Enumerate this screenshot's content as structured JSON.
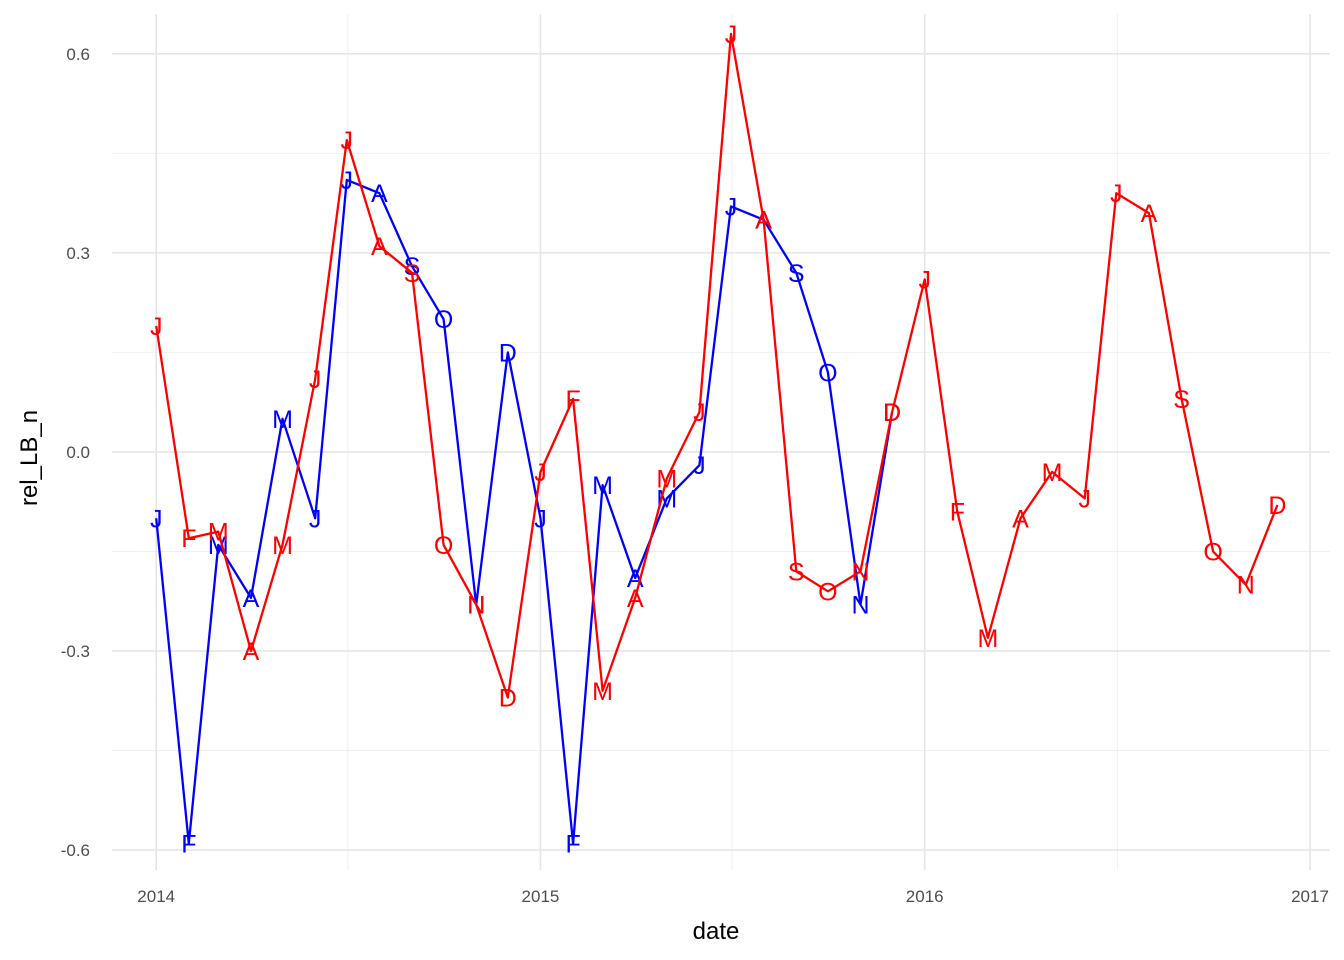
{
  "chart_data": {
    "type": "line",
    "xlabel": "date",
    "ylabel": "rel_LB_n",
    "x_ticks": [
      "2014",
      "2015",
      "2016",
      "2017"
    ],
    "y_ticks": [
      "-0.6",
      "-0.3",
      "0.0",
      "0.3",
      "0.6"
    ],
    "xlim": [
      "2013-11-20",
      "2017-01-20"
    ],
    "ylim": [
      -0.63,
      0.66
    ],
    "grid": true,
    "legend": "none",
    "series": [
      {
        "color": "#0000ff",
        "points": [
          {
            "date": "2014-01-01",
            "value": -0.1,
            "label": "J"
          },
          {
            "date": "2014-02-01",
            "value": -0.59,
            "label": "F"
          },
          {
            "date": "2014-03-01",
            "value": -0.14,
            "label": "M"
          },
          {
            "date": "2014-04-01",
            "value": -0.22,
            "label": "A"
          },
          {
            "date": "2014-05-01",
            "value": 0.05,
            "label": "M"
          },
          {
            "date": "2014-06-01",
            "value": -0.1,
            "label": "J"
          },
          {
            "date": "2014-07-01",
            "value": 0.41,
            "label": "J"
          },
          {
            "date": "2014-08-01",
            "value": 0.39,
            "label": "A"
          },
          {
            "date": "2014-09-01",
            "value": 0.28,
            "label": "S"
          },
          {
            "date": "2014-10-01",
            "value": 0.2,
            "label": "O"
          },
          {
            "date": "2014-11-01",
            "value": -0.23,
            "label": "N"
          },
          {
            "date": "2014-12-01",
            "value": 0.15,
            "label": "D"
          },
          {
            "date": "2015-01-01",
            "value": -0.1,
            "label": "J"
          },
          {
            "date": "2015-02-01",
            "value": -0.59,
            "label": "F"
          },
          {
            "date": "2015-03-01",
            "value": -0.05,
            "label": "M"
          },
          {
            "date": "2015-04-01",
            "value": -0.19,
            "label": "A"
          },
          {
            "date": "2015-05-01",
            "value": -0.07,
            "label": "M"
          },
          {
            "date": "2015-06-01",
            "value": -0.02,
            "label": "J"
          },
          {
            "date": "2015-07-01",
            "value": 0.37,
            "label": "J"
          },
          {
            "date": "2015-08-01",
            "value": 0.35,
            "label": "A"
          },
          {
            "date": "2015-09-01",
            "value": 0.27,
            "label": "S"
          },
          {
            "date": "2015-10-01",
            "value": 0.12,
            "label": "O"
          },
          {
            "date": "2015-11-01",
            "value": -0.23,
            "label": "N"
          },
          {
            "date": "2015-12-01",
            "value": 0.06,
            "label": "D"
          }
        ]
      },
      {
        "color": "#ff0000",
        "points": [
          {
            "date": "2014-01-01",
            "value": 0.19,
            "label": "J"
          },
          {
            "date": "2014-02-01",
            "value": -0.13,
            "label": "F"
          },
          {
            "date": "2014-03-01",
            "value": -0.12,
            "label": "M"
          },
          {
            "date": "2014-04-01",
            "value": -0.3,
            "label": "A"
          },
          {
            "date": "2014-05-01",
            "value": -0.14,
            "label": "M"
          },
          {
            "date": "2014-06-01",
            "value": 0.11,
            "label": "J"
          },
          {
            "date": "2014-07-01",
            "value": 0.47,
            "label": "J"
          },
          {
            "date": "2014-08-01",
            "value": 0.31,
            "label": "A"
          },
          {
            "date": "2014-09-01",
            "value": 0.27,
            "label": "S"
          },
          {
            "date": "2014-10-01",
            "value": -0.14,
            "label": "O"
          },
          {
            "date": "2014-11-01",
            "value": -0.23,
            "label": "N"
          },
          {
            "date": "2014-12-01",
            "value": -0.37,
            "label": "D"
          },
          {
            "date": "2015-01-01",
            "value": -0.03,
            "label": "J"
          },
          {
            "date": "2015-02-01",
            "value": 0.08,
            "label": "F"
          },
          {
            "date": "2015-03-01",
            "value": -0.36,
            "label": "M"
          },
          {
            "date": "2015-04-01",
            "value": -0.22,
            "label": "A"
          },
          {
            "date": "2015-05-01",
            "value": -0.04,
            "label": "M"
          },
          {
            "date": "2015-06-01",
            "value": 0.06,
            "label": "J"
          },
          {
            "date": "2015-07-01",
            "value": 0.63,
            "label": "J"
          },
          {
            "date": "2015-08-01",
            "value": 0.35,
            "label": "A"
          },
          {
            "date": "2015-09-01",
            "value": -0.18,
            "label": "S"
          },
          {
            "date": "2015-10-01",
            "value": -0.21,
            "label": "O"
          },
          {
            "date": "2015-11-01",
            "value": -0.18,
            "label": "N"
          },
          {
            "date": "2015-12-01",
            "value": 0.06,
            "label": "D"
          },
          {
            "date": "2016-01-01",
            "value": 0.26,
            "label": "J"
          },
          {
            "date": "2016-02-01",
            "value": -0.09,
            "label": "F"
          },
          {
            "date": "2016-03-01",
            "value": -0.28,
            "label": "M"
          },
          {
            "date": "2016-04-01",
            "value": -0.1,
            "label": "A"
          },
          {
            "date": "2016-05-01",
            "value": -0.03,
            "label": "M"
          },
          {
            "date": "2016-06-01",
            "value": -0.07,
            "label": "J"
          },
          {
            "date": "2016-07-01",
            "value": 0.39,
            "label": "J"
          },
          {
            "date": "2016-08-01",
            "value": 0.36,
            "label": "A"
          },
          {
            "date": "2016-09-01",
            "value": 0.08,
            "label": "S"
          },
          {
            "date": "2016-10-01",
            "value": -0.15,
            "label": "O"
          },
          {
            "date": "2016-11-01",
            "value": -0.2,
            "label": "N"
          },
          {
            "date": "2016-12-01",
            "value": -0.08,
            "label": "D"
          }
        ]
      }
    ]
  }
}
